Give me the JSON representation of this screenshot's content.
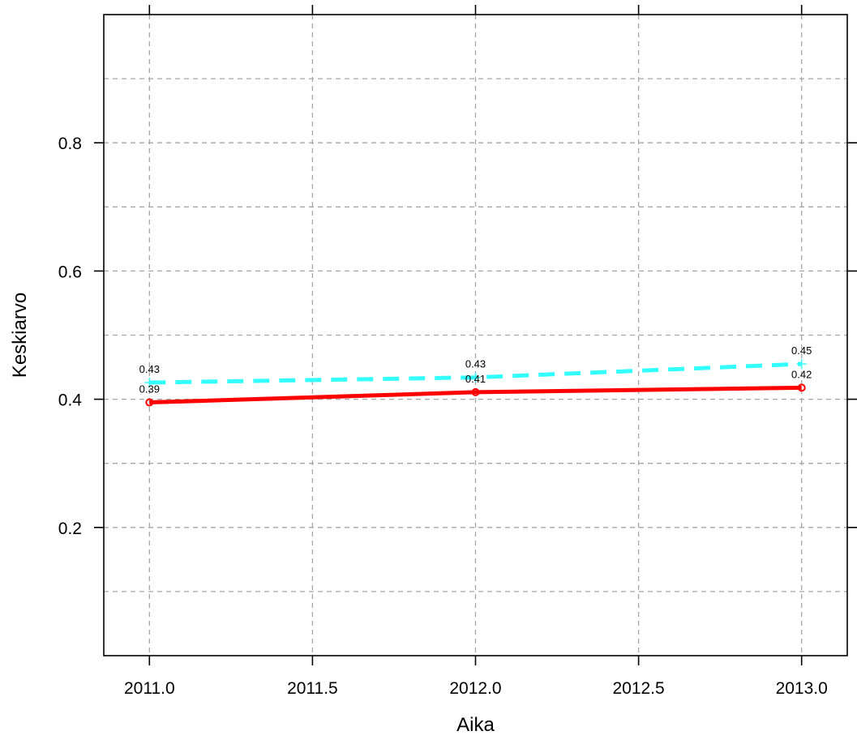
{
  "chart_data": {
    "type": "line",
    "title": "",
    "xlabel": "Aika",
    "ylabel": "Keskiarvo",
    "xlim": [
      2010.86,
      2013.14
    ],
    "ylim": [
      0.0,
      1.0
    ],
    "x_ticks": [
      "2011.0",
      "2011.5",
      "2012.0",
      "2012.5",
      "2013.0"
    ],
    "y_ticks": [
      "0.2",
      "0.4",
      "0.6",
      "0.8"
    ],
    "grid": true,
    "legend": "none",
    "series": [
      {
        "color": "#ff0000",
        "line_style": "solid",
        "marker": "circle",
        "x": [
          2011,
          2012,
          2013
        ],
        "values": [
          0.395,
          0.411,
          0.418
        ],
        "labels": [
          "0.39",
          "0.41",
          "0.42"
        ]
      },
      {
        "color": "#33ffff",
        "line_style": "dashed",
        "marker": "plus",
        "x": [
          2011,
          2012,
          2013
        ],
        "values": [
          0.426,
          0.434,
          0.455
        ],
        "labels": [
          "0.43",
          "0.43",
          "0.45"
        ]
      }
    ]
  }
}
